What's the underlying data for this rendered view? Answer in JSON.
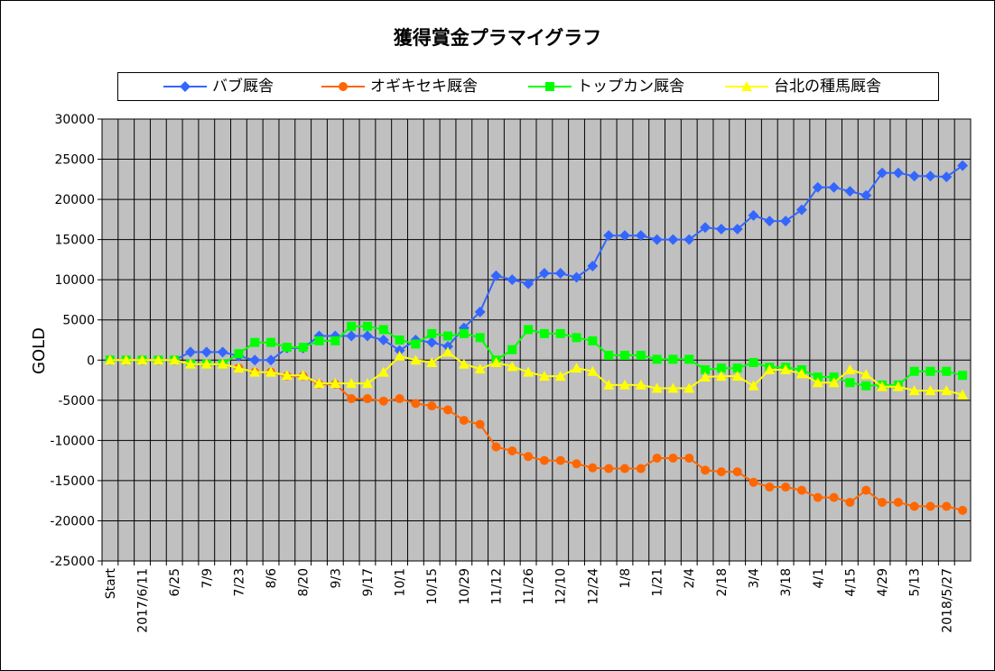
{
  "chart_data": {
    "type": "line",
    "title": "獲得賞金プラマイグラフ",
    "ylabel": "GOLD",
    "xlabel": "",
    "ylim": [
      -25000,
      30000
    ],
    "ytick_step": 5000,
    "grid": true,
    "legend_position": "top",
    "plot_background": "#c0c0c0",
    "x_tick_labels": [
      "Start",
      "",
      "2017/6/11",
      "",
      "6/25",
      "",
      "7/9",
      "",
      "7/23",
      "",
      "8/6",
      "",
      "8/20",
      "",
      "9/3",
      "",
      "9/17",
      "",
      "10/1",
      "",
      "10/15",
      "",
      "10/29",
      "",
      "11/12",
      "",
      "11/26",
      "",
      "12/10",
      "",
      "12/24",
      "",
      "1/8",
      "",
      "1/21",
      "",
      "2/4",
      "",
      "2/18",
      "",
      "3/4",
      "",
      "3/18",
      "",
      "4/1",
      "",
      "4/15",
      "",
      "4/29",
      "",
      "5/13",
      "",
      "2018/5/27",
      ""
    ],
    "series": [
      {
        "name": "バブ厩舎",
        "color": "#3366ff",
        "marker": "diamond",
        "values": [
          0,
          0,
          0,
          0,
          0,
          1000,
          1000,
          1000,
          500,
          0,
          0,
          1500,
          1500,
          3000,
          3000,
          3000,
          3000,
          2500,
          1200,
          2500,
          2200,
          1700,
          4000,
          6000,
          10500,
          10000,
          9500,
          10800,
          10800,
          10300,
          11700,
          15500,
          15500,
          15500,
          15000,
          15000,
          15000,
          16500,
          16300,
          16300,
          18000,
          17300,
          17300,
          18700,
          21500,
          21500,
          21000,
          20500,
          23300,
          23300,
          22900,
          22900,
          22800,
          24200
        ]
      },
      {
        "name": "オギキセキ厩舎",
        "color": "#ff6600",
        "marker": "circle",
        "values": [
          0,
          0,
          0,
          0,
          0,
          -500,
          -500,
          -500,
          -1000,
          -1500,
          -1500,
          -2000,
          -2000,
          -3000,
          -3000,
          -4800,
          -4800,
          -5100,
          -4800,
          -5400,
          -5700,
          -6200,
          -7500,
          -8000,
          -10800,
          -11300,
          -12000,
          -12500,
          -12500,
          -12900,
          -13400,
          -13500,
          -13500,
          -13500,
          -12200,
          -12200,
          -12200,
          -13700,
          -13900,
          -13900,
          -15200,
          -15800,
          -15800,
          -16200,
          -17100,
          -17100,
          -17700,
          -16200,
          -17700,
          -17700,
          -18200,
          -18200,
          -18200,
          -18700
        ]
      },
      {
        "name": "トップカン厩舎",
        "color": "#00ff00",
        "marker": "square",
        "values": [
          0,
          0,
          0,
          0,
          0,
          -500,
          -500,
          -500,
          800,
          2200,
          2200,
          1600,
          1600,
          2400,
          2400,
          4200,
          4200,
          3800,
          2500,
          2000,
          3300,
          3000,
          3300,
          2800,
          0,
          1300,
          3800,
          3300,
          3300,
          2800,
          2400,
          600,
          600,
          600,
          100,
          100,
          100,
          -1200,
          -1000,
          -1000,
          -300,
          -900,
          -900,
          -1200,
          -2100,
          -2100,
          -2800,
          -3200,
          -3100,
          -3100,
          -1400,
          -1400,
          -1400,
          -1900
        ]
      },
      {
        "name": "台北の種馬厩舎",
        "color": "#ffff00",
        "marker": "triangle",
        "values": [
          0,
          0,
          0,
          0,
          0,
          -500,
          -500,
          -500,
          -1000,
          -1500,
          -1500,
          -1900,
          -1900,
          -2900,
          -2900,
          -2900,
          -2900,
          -1500,
          500,
          0,
          -300,
          1000,
          -500,
          -1100,
          -300,
          -800,
          -1500,
          -2000,
          -2000,
          -1000,
          -1400,
          -3100,
          -3100,
          -3100,
          -3500,
          -3500,
          -3500,
          -2100,
          -2000,
          -2000,
          -3200,
          -1200,
          -1200,
          -1700,
          -2800,
          -2800,
          -1200,
          -1800,
          -3300,
          -3300,
          -3800,
          -3800,
          -3800,
          -4300
        ]
      }
    ]
  }
}
